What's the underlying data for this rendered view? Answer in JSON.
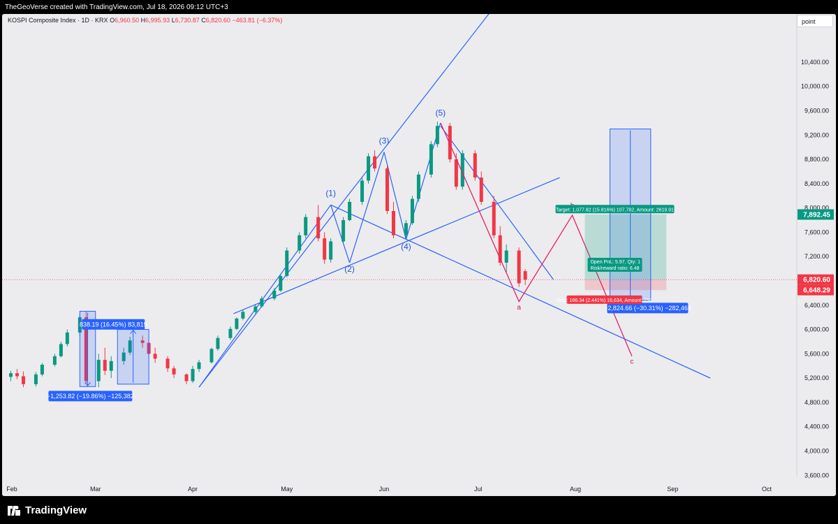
{
  "header": {
    "author_line": "TheGeoVerse created with TradingView.com, Jul 18, 2026 09:12 UTC+3"
  },
  "symbol": {
    "name": "KOSPI Composite Index · 1D · KRX",
    "open_label": "O",
    "open": "6,960.50",
    "high_label": "H",
    "high": "6,995.93",
    "low_label": "L",
    "low": "6,730.87",
    "close_label": "C",
    "close": "6,820.60",
    "change": "−463.81 (−6.37%)"
  },
  "scale_mode": "point",
  "footer": {
    "brand": "TradingView"
  },
  "colors": {
    "up": "#089981",
    "down": "#f23645",
    "line": "#2962ff",
    "wave": "#e91e63",
    "background": "#ececee"
  },
  "chart_data": {
    "type": "candlestick",
    "xlabel": "",
    "ylabel": "",
    "ylim": [
      3500,
      10900
    ],
    "x_ticks": [
      "Feb",
      "Mar",
      "Apr",
      "May",
      "Jun",
      "Jul",
      "Aug",
      "Sep",
      "Oct"
    ],
    "y_ticks": [
      "3,600.00",
      "4,000.00",
      "4,400.00",
      "4,800.00",
      "5,200.00",
      "5,600.00",
      "6,000.00",
      "6,400.00",
      "7,200.00",
      "7,600.00",
      "8,000.00",
      "8,400.00",
      "8,800.00",
      "9,200.00",
      "9,600.00",
      "10,000.00",
      "10,400.00"
    ],
    "price_labels": {
      "target": "7,892.45",
      "current": "6,820.60",
      "stop": "6,648.29"
    },
    "x_dates": [
      "2026-02-02",
      "2026-02-04",
      "2026-02-06",
      "2026-02-10",
      "2026-02-12",
      "2026-02-16",
      "2026-02-18",
      "2026-02-20",
      "2026-02-24",
      "2026-02-26",
      "2026-03-02",
      "2026-03-04",
      "2026-03-06",
      "2026-03-10",
      "2026-03-12",
      "2026-03-16",
      "2026-03-18",
      "2026-03-20",
      "2026-03-24",
      "2026-03-26",
      "2026-03-30",
      "2026-04-01",
      "2026-04-03",
      "2026-04-07",
      "2026-04-09",
      "2026-04-13",
      "2026-04-15",
      "2026-04-17",
      "2026-04-21",
      "2026-04-23",
      "2026-04-27",
      "2026-04-29",
      "2026-05-01",
      "2026-05-05",
      "2026-05-07",
      "2026-05-11",
      "2026-05-13",
      "2026-05-15",
      "2026-05-19",
      "2026-05-21",
      "2026-05-25",
      "2026-05-27",
      "2026-05-29",
      "2026-06-02",
      "2026-06-04",
      "2026-06-08",
      "2026-06-10",
      "2026-06-12",
      "2026-06-16",
      "2026-06-18",
      "2026-06-22",
      "2026-06-24",
      "2026-06-26",
      "2026-06-30",
      "2026-07-02",
      "2026-07-06",
      "2026-07-08",
      "2026-07-10",
      "2026-07-14",
      "2026-07-16"
    ],
    "series": [
      {
        "name": "",
        "ohlc": [
          [
            5220,
            5320,
            5150,
            5280
          ],
          [
            5280,
            5350,
            5180,
            5230
          ],
          [
            5230,
            5310,
            5050,
            5100
          ],
          [
            5100,
            5300,
            5060,
            5260
          ],
          [
            5260,
            5450,
            5230,
            5420
          ],
          [
            5420,
            5600,
            5390,
            5560
          ],
          [
            5560,
            5800,
            5540,
            5760
          ],
          [
            5760,
            6000,
            5720,
            5950
          ],
          [
            5950,
            6250,
            5900,
            6200
          ],
          [
            6200,
            6300,
            5100,
            5150
          ],
          [
            5150,
            5600,
            5050,
            5500
          ],
          [
            5500,
            5700,
            5250,
            5320
          ],
          [
            5320,
            5560,
            5200,
            5480
          ],
          [
            5480,
            5700,
            5420,
            5620
          ],
          [
            5620,
            5880,
            5580,
            5820
          ],
          [
            5820,
            5900,
            5700,
            5780
          ],
          [
            5780,
            5800,
            5560,
            5600
          ],
          [
            5600,
            5700,
            5450,
            5520
          ],
          [
            5520,
            5560,
            5300,
            5360
          ],
          [
            5360,
            5400,
            5200,
            5260
          ],
          [
            5260,
            5280,
            5100,
            5150
          ],
          [
            5150,
            5400,
            5120,
            5350
          ],
          [
            5350,
            5500,
            5300,
            5460
          ],
          [
            5460,
            5700,
            5440,
            5680
          ],
          [
            5680,
            5900,
            5650,
            5860
          ],
          [
            5860,
            6050,
            5830,
            6010
          ],
          [
            6010,
            6200,
            5990,
            6180
          ],
          [
            6180,
            6320,
            6150,
            6290
          ],
          [
            6290,
            6420,
            6250,
            6380
          ],
          [
            6380,
            6550,
            6360,
            6510
          ],
          [
            6510,
            6680,
            6480,
            6640
          ],
          [
            6640,
            6900,
            6620,
            6880
          ],
          [
            6880,
            7350,
            6860,
            7300
          ],
          [
            7300,
            7600,
            7250,
            7550
          ],
          [
            7550,
            7900,
            7500,
            7850
          ],
          [
            7850,
            8050,
            7450,
            7500
          ],
          [
            7500,
            7600,
            7080,
            7150
          ],
          [
            7150,
            7500,
            7100,
            7450
          ],
          [
            7450,
            7850,
            7420,
            7800
          ],
          [
            7800,
            8150,
            7780,
            8100
          ],
          [
            8100,
            8500,
            8050,
            8450
          ],
          [
            8450,
            8900,
            8400,
            8850
          ],
          [
            8850,
            8950,
            8600,
            8650
          ],
          [
            8650,
            8700,
            7900,
            7950
          ],
          [
            7950,
            8100,
            7500,
            7550
          ],
          [
            7550,
            7800,
            7480,
            7750
          ],
          [
            7750,
            8200,
            7720,
            8150
          ],
          [
            8150,
            8600,
            8100,
            8550
          ],
          [
            8550,
            9100,
            8500,
            9050
          ],
          [
            9050,
            9420,
            9000,
            9350
          ],
          [
            9350,
            9400,
            8750,
            8800
          ],
          [
            8800,
            8900,
            8300,
            8350
          ],
          [
            8350,
            8950,
            8300,
            8900
          ],
          [
            8900,
            8950,
            8450,
            8500
          ],
          [
            8500,
            8600,
            8050,
            8100
          ],
          [
            8100,
            8200,
            7500,
            7550
          ],
          [
            7550,
            7700,
            7050,
            7100
          ],
          [
            7100,
            7400,
            6950,
            7300
          ],
          [
            7300,
            7350,
            6700,
            6760
          ],
          [
            6960,
            6996,
            6731,
            6821
          ]
        ]
      }
    ],
    "wave_labels": [
      "(1)",
      "(2)",
      "(3)",
      "(4)",
      "(5)",
      "a",
      "b",
      "c"
    ],
    "annotations": {
      "measure_up": "838.19 (16.45%) 83,819",
      "measure_down": "−1,253.82 (−19.86%) −125,382",
      "measure_big": "−2,824.66 (−30.31%) −282,466",
      "target_label": "Target: 1,077.82 (15.816%) 107,782, Amount: 2619.91",
      "open_pnl": "Open PnL: 5.97, Qty: 1",
      "risk_reward": "Risk/reward ratio: 6.48",
      "stop_label": "Stop: 166.34 (2.441%) 16,634, Amount: 750"
    }
  }
}
